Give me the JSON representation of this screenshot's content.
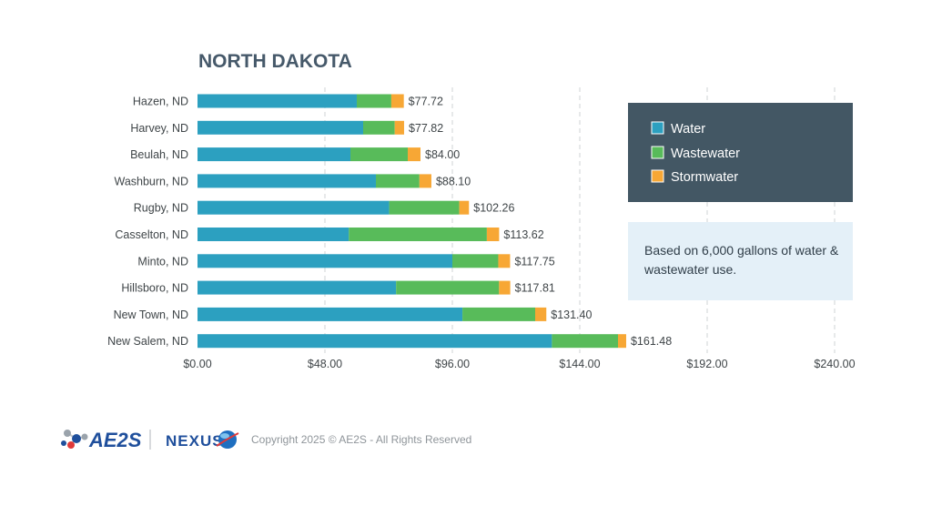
{
  "colors": {
    "water": "#2ca0c0",
    "wastewater": "#58bb5a",
    "stormwater": "#f7a735",
    "legend_bg": "#435764",
    "note_bg": "#e4f0f8",
    "title": "#46596a",
    "grid": "#cfd3d6"
  },
  "chart_data": {
    "type": "bar",
    "orientation": "horizontal",
    "stacked": true,
    "title": "NORTH DAKOTA",
    "categories": [
      "Hazen, ND",
      "Harvey, ND",
      "Beulah, ND",
      "Washburn, ND",
      "Rugby, ND",
      "Casselton, ND",
      "Minto, ND",
      "Hillsboro, ND",
      "New Town, ND",
      "New Salem, ND"
    ],
    "series": [
      {
        "name": "Water",
        "values": [
          60.0,
          62.4,
          57.6,
          67.2,
          72.2,
          57.0,
          96.0,
          74.8,
          99.8,
          133.5
        ]
      },
      {
        "name": "Wastewater",
        "values": [
          13.0,
          11.9,
          21.6,
          16.4,
          26.4,
          52.0,
          17.3,
          38.8,
          27.4,
          24.9
        ]
      },
      {
        "name": "Stormwater",
        "values": [
          4.72,
          3.52,
          4.8,
          4.5,
          3.66,
          4.62,
          4.45,
          4.21,
          4.2,
          3.08
        ]
      }
    ],
    "totals": [
      77.72,
      77.82,
      84.0,
      88.1,
      102.26,
      113.62,
      117.75,
      117.81,
      131.4,
      161.48
    ],
    "total_labels": [
      "$77.72",
      "$77.82",
      "$84.00",
      "$88.10",
      "$102.26",
      "$113.62",
      "$117.75",
      "$117.81",
      "$131.40",
      "$161.48"
    ],
    "xlim": [
      0,
      240
    ],
    "xticks": [
      0,
      48,
      96,
      144,
      192,
      240
    ],
    "xtick_labels": [
      "$0.00",
      "$48.00",
      "$96.00",
      "$144.00",
      "$192.00",
      "$240.00"
    ],
    "grid": "vertical dashed",
    "legend_position": "right",
    "legend": [
      "Water",
      "Wastewater",
      "Stormwater"
    ]
  },
  "note": {
    "lines": [
      "Based on 6,000 gallons of water &",
      "wastewater use."
    ]
  },
  "footer": {
    "logo_ae2s": "AE2S",
    "logo_nexus": "NEXUS",
    "copyright": "Copyright 2025 © AE2S - All Rights Reserved"
  }
}
